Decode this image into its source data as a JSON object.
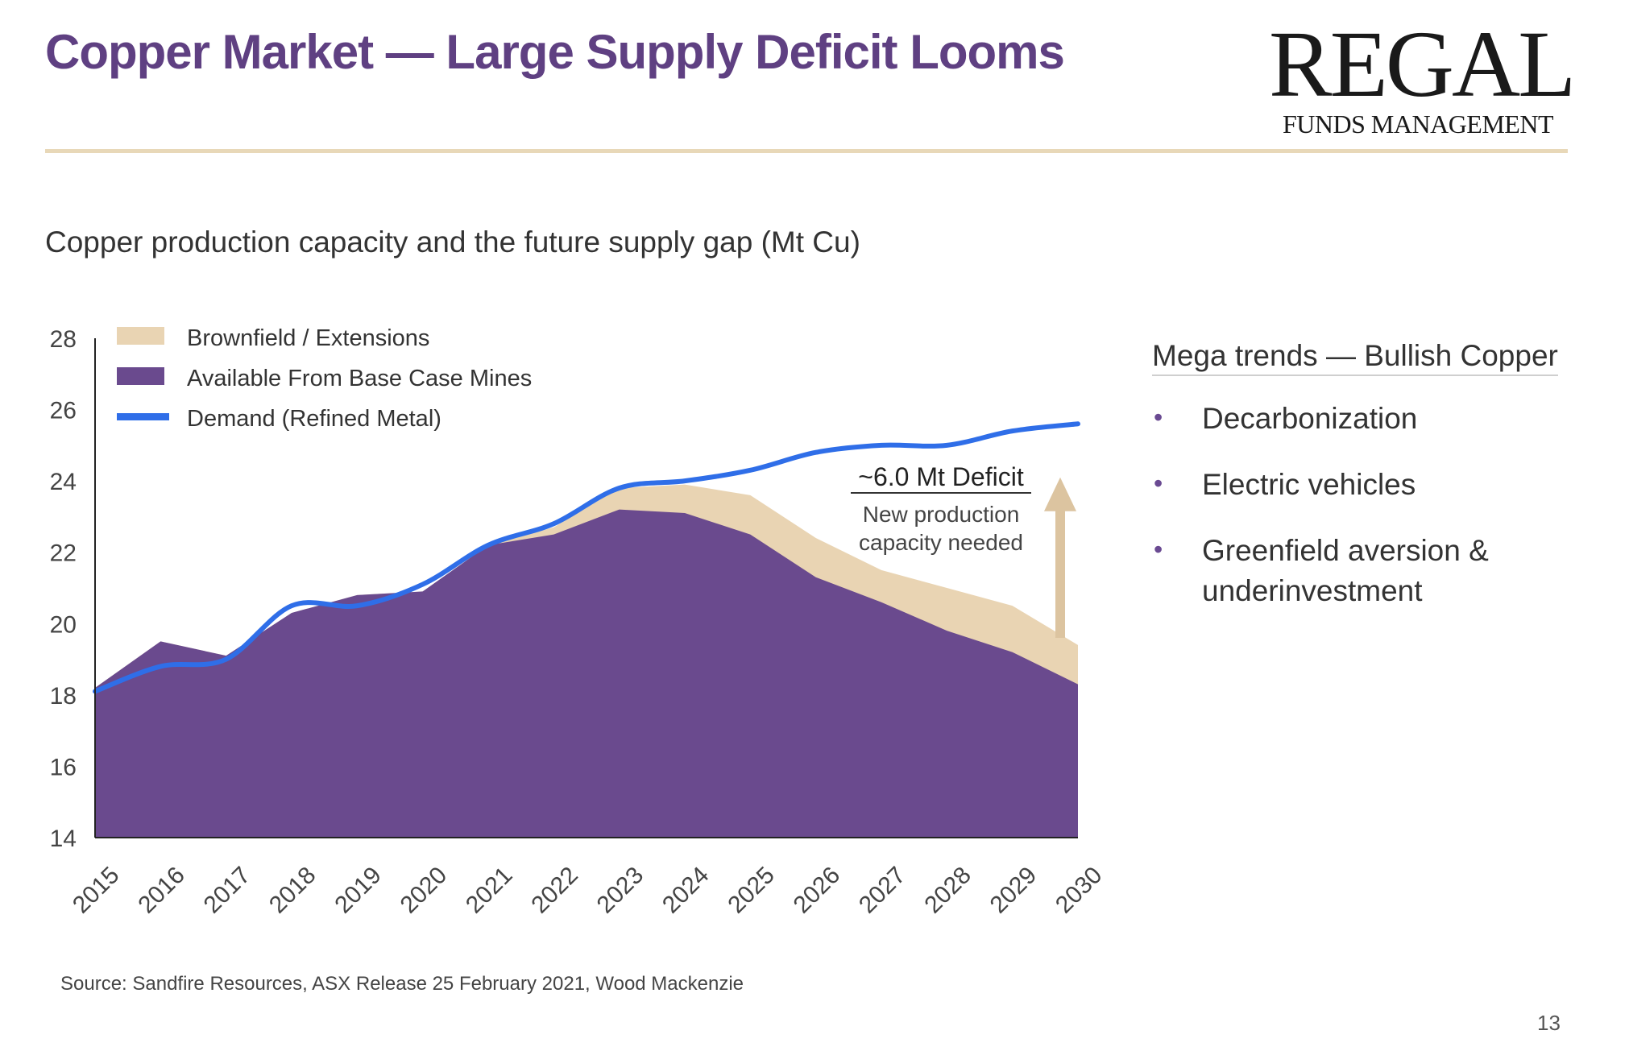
{
  "slide": {
    "title": "Copper Market — Large Supply Deficit Looms",
    "logo_main": "REGAL",
    "logo_sub": "FUNDS MANAGEMENT",
    "page_number": "13"
  },
  "chart_subtitle": "Copper production capacity and the future supply gap (Mt Cu)",
  "source": "Source: Sandfire Resources, ASX Release 25 February 2021, Wood Mackenzie",
  "trends": {
    "title": "Mega trends — Bullish Copper",
    "items": [
      "Decarbonization",
      "Electric vehicles",
      "Greenfield aversion & underinvestment"
    ]
  },
  "colors": {
    "title": "#5f4082",
    "base": "#6a4a8e",
    "brownfield": "#e9d4b3",
    "demand": "#2f6ee8",
    "arrow": "#dcc4a0",
    "rule": "#e8d8b8"
  },
  "chart_data": {
    "type": "area",
    "title": "Copper production capacity and the future supply gap (Mt Cu)",
    "ylabel": "Mt Cu",
    "ylim": [
      14,
      28
    ],
    "yticks": [
      "14",
      "16",
      "18",
      "20",
      "22",
      "24",
      "26",
      "28"
    ],
    "categories": [
      "2015",
      "2016",
      "2017",
      "2018",
      "2019",
      "2020",
      "2021",
      "2022",
      "2023",
      "2024",
      "2025",
      "2026",
      "2027",
      "2028",
      "2029",
      "2030"
    ],
    "series": [
      {
        "name": "Available From Base Case Mines",
        "kind": "area",
        "values": [
          18.2,
          19.5,
          19.1,
          20.3,
          20.8,
          20.9,
          22.2,
          22.5,
          23.2,
          23.1,
          22.5,
          21.3,
          20.6,
          19.8,
          19.2,
          18.3
        ]
      },
      {
        "name": "Brownfield / Extensions",
        "kind": "area",
        "values": [
          18.2,
          19.5,
          19.1,
          20.3,
          20.8,
          20.9,
          22.2,
          22.7,
          23.8,
          23.9,
          23.6,
          22.4,
          21.5,
          21.0,
          20.5,
          19.4
        ]
      },
      {
        "name": "Demand (Refined Metal)",
        "kind": "line",
        "values": [
          18.1,
          18.8,
          19.0,
          20.5,
          20.5,
          21.1,
          22.2,
          22.8,
          23.8,
          24.0,
          24.3,
          24.8,
          25.0,
          25.0,
          25.4,
          25.6
        ]
      }
    ],
    "legend": [
      {
        "label": "Brownfield / Extensions",
        "kind": "area"
      },
      {
        "label": "Available From Base Case Mines",
        "kind": "area"
      },
      {
        "label": "Demand  (Refined Metal)",
        "kind": "line"
      }
    ],
    "annotation": {
      "title": "~6.0 Mt Deficit",
      "line1": "New production",
      "line2": "capacity needed",
      "arrow_from": 19.6,
      "arrow_to": 24.1
    }
  }
}
